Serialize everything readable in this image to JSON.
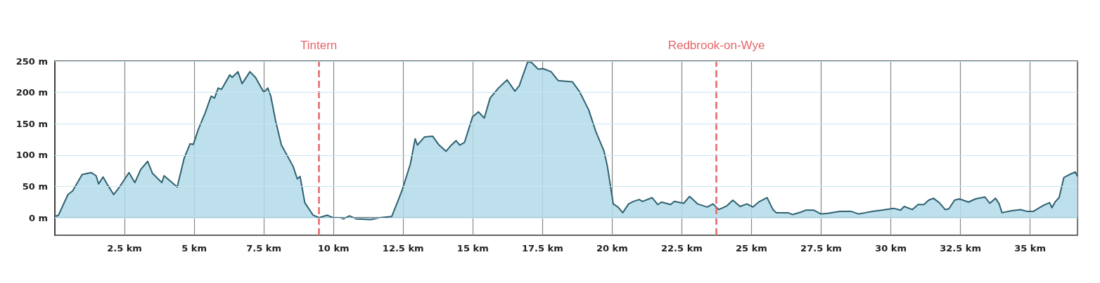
{
  "chart_data": {
    "type": "area",
    "xlim": [
      0,
      36.7
    ],
    "ylim": [
      -28,
      250
    ],
    "xticks": [
      {
        "value": 2.5,
        "label": "2.5 km"
      },
      {
        "value": 5,
        "label": "5 km"
      },
      {
        "value": 7.5,
        "label": "7.5 km"
      },
      {
        "value": 10,
        "label": "10 km"
      },
      {
        "value": 12.5,
        "label": "12.5 km"
      },
      {
        "value": 15,
        "label": "15 km"
      },
      {
        "value": 17.5,
        "label": "17.5 km"
      },
      {
        "value": 20,
        "label": "20 km"
      },
      {
        "value": 22.5,
        "label": "22.5 km"
      },
      {
        "value": 25,
        "label": "25 km"
      },
      {
        "value": 27.5,
        "label": "27.5 km"
      },
      {
        "value": 30,
        "label": "30 km"
      },
      {
        "value": 32.5,
        "label": "32.5 km"
      },
      {
        "value": 35,
        "label": "35 km"
      }
    ],
    "yticks": [
      {
        "value": 0,
        "label": "0 m"
      },
      {
        "value": 50,
        "label": "50 m"
      },
      {
        "value": 100,
        "label": "100 m"
      },
      {
        "value": 150,
        "label": "150 m"
      },
      {
        "value": 200,
        "label": "200 m"
      },
      {
        "value": 250,
        "label": "250 m"
      }
    ],
    "grid": true,
    "series": [
      {
        "color": "#2f6170",
        "x": [
          0,
          0.13,
          0.47,
          0.64,
          0.98,
          1.31,
          1.48,
          1.57,
          1.73,
          1.9,
          2.11,
          2.32,
          2.66,
          2.87,
          3.08,
          3.33,
          3.5,
          3.84,
          3.92,
          4.39,
          4.64,
          4.85,
          4.97,
          5.14,
          5.4,
          5.61,
          5.73,
          5.86,
          5.98,
          6.28,
          6.36,
          6.57,
          6.72,
          7.0,
          7.2,
          7.5,
          7.64,
          7.75,
          7.92,
          8.13,
          8.55,
          8.7,
          8.8,
          8.97,
          9.27,
          9.48,
          9.77,
          9.98,
          10.24,
          10.36,
          10.57,
          10.82,
          11.33,
          11.67,
          12.09,
          12.34,
          12.47,
          12.76,
          12.93,
          13.01,
          13.27,
          13.56,
          13.77,
          14.04,
          14.19,
          14.4,
          14.53,
          14.7,
          14.99,
          15.2,
          15.41,
          15.62,
          15.92,
          16.23,
          16.51,
          16.67,
          16.97,
          17.1,
          17.35,
          17.52,
          17.81,
          18.06,
          18.57,
          18.82,
          19.16,
          19.41,
          19.71,
          19.83,
          20.04,
          20.21,
          20.38,
          20.59,
          20.76,
          20.97,
          21.09,
          21.43,
          21.64,
          21.77,
          22.1,
          22.23,
          22.57,
          22.78,
          23.07,
          23.41,
          23.62,
          23.83,
          24.12,
          24.33,
          24.59,
          24.84,
          25.05,
          25.26,
          25.56,
          25.77,
          25.89,
          26.31,
          26.48,
          26.78,
          26.94,
          27.24,
          27.49,
          27.74,
          28.17,
          28.59,
          28.84,
          29.09,
          29.34,
          29.68,
          30.1,
          30.35,
          30.48,
          30.77,
          30.98,
          31.19,
          31.36,
          31.53,
          31.74,
          31.95,
          32.08,
          32.29,
          32.46,
          32.79,
          33.04,
          33.38,
          33.55,
          33.76,
          33.89,
          33.99,
          34.31,
          34.65,
          34.9,
          35.11,
          35.49,
          35.7,
          35.78,
          35.91,
          36.04,
          36.21,
          36.42,
          36.62,
          36.7
        ],
        "values": [
          2,
          4,
          37,
          43,
          69,
          72,
          67,
          54,
          65,
          52,
          37,
          49,
          72,
          56,
          77,
          90,
          71,
          56,
          67,
          49,
          95,
          118,
          117,
          140,
          168,
          194,
          191,
          207,
          205,
          228,
          224,
          233,
          214,
          233,
          224,
          200,
          207,
          194,
          155,
          116,
          82,
          62,
          66,
          24,
          4,
          0,
          4,
          0,
          0,
          -2,
          3,
          -2,
          -3,
          0,
          2,
          30,
          45,
          86,
          126,
          116,
          129,
          130,
          117,
          106,
          114,
          123,
          116,
          120,
          161,
          169,
          159,
          191,
          207,
          220,
          202,
          211,
          249,
          248,
          237,
          238,
          233,
          219,
          217,
          202,
          172,
          138,
          106,
          82,
          22,
          17,
          8,
          22,
          26,
          29,
          26,
          32,
          21,
          25,
          21,
          26,
          23,
          34,
          22,
          17,
          22,
          13,
          19,
          28,
          18,
          22,
          17,
          25,
          32,
          13,
          8,
          8,
          5,
          9,
          12,
          12,
          6,
          7,
          10,
          10,
          6,
          8,
          10,
          12,
          15,
          12,
          18,
          13,
          21,
          21,
          28,
          31,
          24,
          13,
          14,
          28,
          30,
          25,
          30,
          33,
          23,
          31,
          22,
          8,
          11,
          13,
          10,
          10,
          20,
          24,
          16,
          26,
          32,
          64,
          69,
          73,
          66
        ]
      }
    ],
    "ref_lines": [
      {
        "axis": "x",
        "value": 9.47,
        "label": "Tintern",
        "color": "#e8666a",
        "line_style": "dashed"
      },
      {
        "axis": "x",
        "value": 23.74,
        "label": "Redbrook-on-Wye",
        "color": "#e8666a",
        "line_style": "dashed"
      }
    ]
  }
}
